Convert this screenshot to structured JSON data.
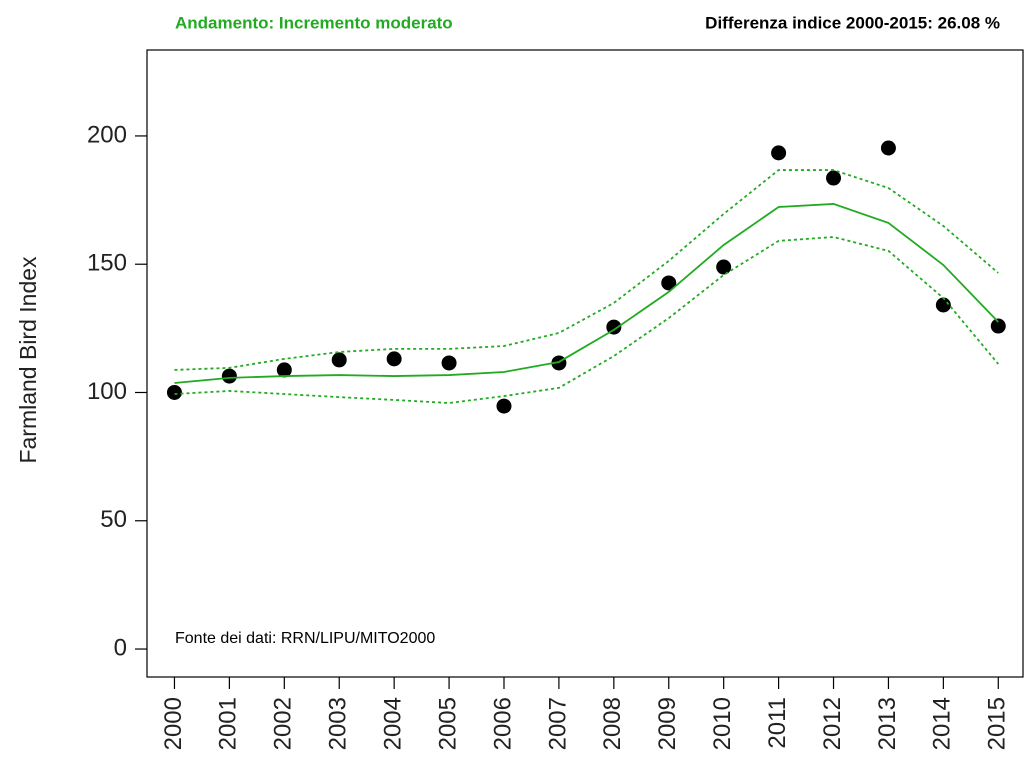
{
  "chart_data": {
    "type": "line",
    "annotations": [
      {
        "text": "Andamento:  Incremento moderato",
        "color": "#22aa22"
      },
      {
        "text": "Differenza indice 2000-2015:  26.08 %",
        "color": "#000000"
      },
      {
        "text": "Fonte dei dati: RRN/LIPU/MITO2000",
        "color": "#000000"
      }
    ],
    "y_label": "Farmland Bird Index",
    "x": [
      2000,
      2001,
      2002,
      2003,
      2004,
      2005,
      2006,
      2007,
      2008,
      2009,
      2010,
      2011,
      2012,
      2013,
      2014,
      2015
    ],
    "series": [
      {
        "style": "points",
        "color": "#000000",
        "values": [
          100,
          106.4,
          108.8,
          112.7,
          113.1,
          111.5,
          94.7,
          111.5,
          125.5,
          142.7,
          148.9,
          193.4,
          183.6,
          195.3,
          134.1,
          125.9
        ]
      },
      {
        "style": "solid",
        "color": "#22aa22",
        "values": [
          103.7,
          105.7,
          106.4,
          106.8,
          106.4,
          106.8,
          108.0,
          111.9,
          124.4,
          139.2,
          157.5,
          172.3,
          173.5,
          166.1,
          149.7,
          127.5
        ]
      },
      {
        "style": "dotted",
        "color": "#22aa22",
        "values": [
          108.8,
          109.6,
          113.1,
          115.8,
          117.0,
          117.0,
          118.1,
          123.2,
          134.9,
          151.3,
          169.6,
          186.7,
          186.7,
          179.7,
          164.9,
          146.6
        ]
      },
      {
        "style": "dotted",
        "color": "#22aa22",
        "values": [
          99.4,
          100.6,
          99.4,
          98.2,
          97.1,
          95.9,
          98.6,
          101.8,
          114.2,
          129.0,
          145.8,
          159.1,
          160.6,
          155.2,
          136.8,
          111.1
        ]
      }
    ],
    "xlim": [
      1999.5,
      2015.45
    ],
    "xticks": [
      2000,
      2001,
      2002,
      2003,
      2004,
      2005,
      2006,
      2007,
      2008,
      2009,
      2010,
      2011,
      2012,
      2013,
      2014,
      2015
    ],
    "ylim": [
      -10.9,
      233.5
    ],
    "yticks": [
      0,
      50,
      100,
      150,
      200
    ]
  }
}
